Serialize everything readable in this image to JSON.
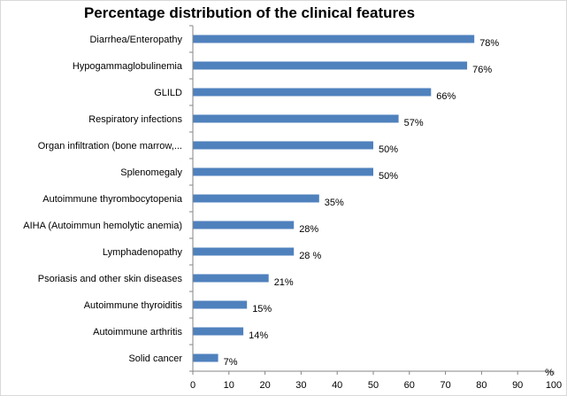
{
  "chart_data": {
    "type": "bar",
    "orientation": "horizontal",
    "title": "Percentage distribution of the clinical features",
    "categories": [
      "Diarrhea/Enteropathy",
      "Hypogammaglobulinemia",
      "GLILD",
      "Respiratory infections",
      "Organ infiltration (bone marrow,...",
      "Splenomegaly",
      "Autoimmune thyrombocytopenia",
      "AIHA (Autoimmun hemolytic anemia)",
      "Lymphadenopathy",
      "Psoriasis and other skin diseases",
      "Autoimmune thyroiditis",
      "Autoimmune arthritis",
      "Solid cancer"
    ],
    "values": [
      78,
      76,
      66,
      57,
      50,
      50,
      35,
      28,
      28,
      21,
      15,
      14,
      7
    ],
    "data_labels": [
      "78%",
      "76%",
      "66%",
      "57%",
      "50%",
      "50%",
      "35%",
      "28%",
      "28 %",
      "21%",
      "15%",
      "14%",
      "7%"
    ],
    "xlabel": "%",
    "ylabel": "",
    "xlim": [
      0,
      100
    ],
    "xticks": [
      0,
      10,
      20,
      30,
      40,
      50,
      60,
      70,
      80,
      90,
      100
    ],
    "grid": false,
    "legend": "none",
    "bar_color": "#4f81bd"
  }
}
